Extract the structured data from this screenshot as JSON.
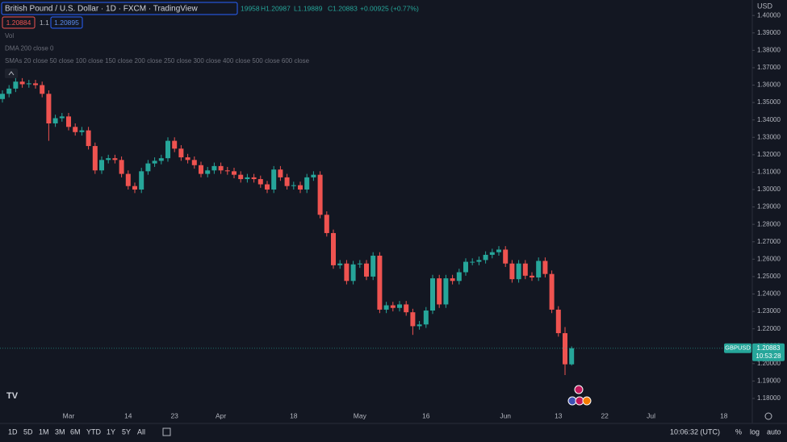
{
  "header": {
    "title": "British Pound / U.S. Dollar · 1D · FXCM · TradingView",
    "ohlc": [
      "19958",
      "H1.20987",
      "L1.19889",
      "C1.20883",
      "+0.00925 (+0.77%)"
    ],
    "bid": "1.20884",
    "spread": "1.1",
    "ask": "1.20895"
  },
  "indicators": [
    "Vol",
    "DMA 200 close 0",
    "SMAs 20 close 50 close 100 close 150 close 200 close 250 close 300 close 400 close 500 close 600 close"
  ],
  "toolbar": {
    "ranges": [
      "1D",
      "5D",
      "1M",
      "3M",
      "6M",
      "YTD",
      "1Y",
      "5Y",
      "All"
    ],
    "clock": "10:06:32 (UTC)",
    "options": [
      "%",
      "log",
      "auto"
    ]
  },
  "chart_data": {
    "type": "candlestick",
    "currency": "USD",
    "symbol": "GBPUSD",
    "last_price": 1.20883,
    "countdown": "10:53:28",
    "up_color": "#26a69a",
    "down_color": "#ef5350",
    "categories": [
      null,
      null,
      null,
      null,
      null,
      null,
      null,
      null,
      null,
      null,
      "Mar",
      null,
      null,
      null,
      null,
      null,
      null,
      null,
      null,
      "14",
      null,
      null,
      null,
      null,
      null,
      null,
      "23",
      null,
      null,
      null,
      null,
      null,
      null,
      "Apr",
      null,
      null,
      null,
      null,
      null,
      null,
      null,
      null,
      null,
      null,
      "18",
      null,
      null,
      null,
      null,
      null,
      null,
      null,
      null,
      null,
      "May",
      null,
      null,
      null,
      null,
      null,
      null,
      null,
      null,
      null,
      "16",
      null,
      null,
      null,
      null,
      null,
      null,
      null,
      null,
      null,
      null,
      null,
      "Jun",
      null,
      null,
      null,
      null,
      null,
      null,
      null,
      "13",
      null,
      null,
      null,
      null,
      null,
      null,
      "22",
      null,
      null,
      null,
      null,
      null,
      null,
      "Jul",
      null,
      null,
      null,
      null,
      null,
      null,
      null,
      null,
      null,
      null,
      "18",
      null,
      null
    ],
    "open": [
      1.352,
      1.355,
      1.358,
      1.362,
      1.3605,
      1.361,
      1.36,
      1.355,
      1.338,
      1.341,
      1.342,
      1.336,
      1.333,
      1.334,
      1.325,
      1.311,
      1.317,
      1.318,
      1.317,
      1.309,
      1.302,
      1.3,
      1.3105,
      1.315,
      1.3165,
      1.318,
      1.328,
      1.3235,
      1.3185,
      1.317,
      1.314,
      1.309,
      1.311,
      1.3135,
      1.311,
      1.3105,
      1.3085,
      1.306,
      1.307,
      1.306,
      1.303,
      1.3,
      1.3115,
      1.307,
      1.302,
      1.3025,
      1.3,
      1.307,
      1.3085,
      1.2855,
      1.275,
      1.2565,
      1.2575,
      1.2475,
      1.257,
      1.2575,
      1.25,
      1.262,
      1.231,
      1.2335,
      1.232,
      1.234,
      1.2295,
      1.2215,
      1.2225,
      1.2305,
      1.249,
      1.234,
      1.249,
      1.2475,
      1.2525,
      1.2585,
      1.2585,
      1.2595,
      1.2625,
      1.264,
      1.2655,
      1.2575,
      1.2485,
      1.2575,
      1.2505,
      1.2495,
      1.259,
      1.2515,
      1.231,
      1.2175,
      1.19958,
      null,
      null,
      null,
      null,
      null,
      null,
      null,
      null,
      null,
      null,
      null,
      null,
      null,
      null,
      null,
      null,
      null,
      null,
      null,
      null,
      null,
      null,
      null,
      null,
      null
    ],
    "high": [
      1.357,
      1.36,
      1.364,
      1.364,
      1.363,
      1.363,
      1.362,
      1.357,
      1.343,
      1.344,
      1.344,
      1.338,
      1.336,
      1.336,
      1.327,
      1.319,
      1.32,
      1.32,
      1.319,
      1.311,
      1.304,
      1.3125,
      1.317,
      1.3185,
      1.32,
      1.33,
      1.33,
      1.3255,
      1.3205,
      1.319,
      1.316,
      1.313,
      1.3155,
      1.3155,
      1.313,
      1.3125,
      1.3105,
      1.309,
      1.309,
      1.308,
      1.305,
      1.3135,
      1.3135,
      1.309,
      1.3045,
      1.3045,
      1.309,
      1.3105,
      1.3105,
      1.2875,
      1.277,
      1.2595,
      1.2595,
      1.259,
      1.2595,
      1.2595,
      1.264,
      1.264,
      1.2355,
      1.2355,
      1.236,
      1.236,
      1.2315,
      1.2245,
      1.2325,
      1.251,
      1.251,
      1.251,
      1.251,
      1.2545,
      1.2605,
      1.2605,
      1.2615,
      1.2645,
      1.266,
      1.2675,
      1.2675,
      1.2595,
      1.2595,
      1.2595,
      1.2525,
      1.261,
      1.261,
      1.2535,
      1.233,
      1.221,
      1.20987,
      null,
      null,
      null,
      null,
      null,
      null,
      null,
      null,
      null,
      null,
      null,
      null,
      null,
      null,
      null,
      null,
      null,
      null,
      null,
      null,
      null,
      null,
      null,
      null,
      null
    ],
    "low": [
      1.35,
      1.353,
      1.356,
      1.3585,
      1.3585,
      1.358,
      1.353,
      1.328,
      1.336,
      1.339,
      1.334,
      1.331,
      1.331,
      1.323,
      1.309,
      1.309,
      1.315,
      1.315,
      1.307,
      1.3,
      1.298,
      1.298,
      1.3085,
      1.313,
      1.3145,
      1.316,
      1.3215,
      1.3165,
      1.315,
      1.312,
      1.307,
      1.307,
      1.309,
      1.309,
      1.3085,
      1.3065,
      1.304,
      1.304,
      1.304,
      1.301,
      1.298,
      1.298,
      1.305,
      1.3,
      1.3,
      1.298,
      1.298,
      1.305,
      1.2835,
      1.273,
      1.2545,
      1.2545,
      1.2455,
      1.2455,
      1.255,
      1.248,
      1.248,
      1.229,
      1.229,
      1.23,
      1.23,
      1.2275,
      1.2165,
      1.2195,
      1.2205,
      1.2285,
      1.232,
      1.232,
      1.2455,
      1.2455,
      1.2505,
      1.2565,
      1.2565,
      1.2575,
      1.2605,
      1.262,
      1.2555,
      1.2465,
      1.2465,
      1.2485,
      1.2475,
      1.2475,
      1.2495,
      1.229,
      1.2155,
      1.1934,
      1.19889,
      null,
      null,
      null,
      null,
      null,
      null,
      null,
      null,
      null,
      null,
      null,
      null,
      null,
      null,
      null,
      null,
      null,
      null,
      null,
      null,
      null,
      null,
      null,
      null,
      null
    ],
    "close": [
      1.355,
      1.358,
      1.362,
      1.3605,
      1.361,
      1.36,
      1.355,
      1.338,
      1.341,
      1.342,
      1.336,
      1.333,
      1.334,
      1.325,
      1.311,
      1.317,
      1.318,
      1.317,
      1.309,
      1.302,
      1.3,
      1.3105,
      1.315,
      1.3165,
      1.318,
      1.328,
      1.3235,
      1.3185,
      1.317,
      1.314,
      1.309,
      1.311,
      1.3135,
      1.311,
      1.3105,
      1.3085,
      1.306,
      1.307,
      1.306,
      1.303,
      1.3,
      1.3115,
      1.307,
      1.302,
      1.3025,
      1.3,
      1.307,
      1.3085,
      1.2855,
      1.275,
      1.2565,
      1.2575,
      1.2475,
      1.257,
      1.2575,
      1.25,
      1.262,
      1.231,
      1.2335,
      1.232,
      1.234,
      1.2295,
      1.2215,
      1.2225,
      1.2305,
      1.249,
      1.234,
      1.249,
      1.2475,
      1.2525,
      1.2585,
      1.2585,
      1.2595,
      1.2625,
      1.264,
      1.2655,
      1.2575,
      1.2485,
      1.2575,
      1.2505,
      1.2495,
      1.259,
      1.2515,
      1.231,
      1.2175,
      1.1996,
      1.20883,
      null,
      null,
      null,
      null,
      null,
      null,
      null,
      null,
      null,
      null,
      null,
      null,
      null,
      null,
      null,
      null,
      null,
      null,
      null,
      null,
      null,
      null,
      null,
      null,
      null
    ],
    "ylim": [
      1.1735,
      1.4089
    ],
    "yticks": [
      {
        "value": 1.18,
        "label": "1.18000"
      },
      {
        "value": 1.19,
        "label": "1.19000"
      },
      {
        "value": 1.2,
        "label": "1.20000"
      },
      {
        "value": 1.21,
        "label": "1.21000"
      },
      {
        "value": 1.22,
        "label": "1.22000"
      },
      {
        "value": 1.23,
        "label": "1.23000"
      },
      {
        "value": 1.24,
        "label": "1.24000"
      },
      {
        "value": 1.25,
        "label": "1.25000"
      },
      {
        "value": 1.26,
        "label": "1.26000"
      },
      {
        "value": 1.27,
        "label": "1.27000"
      },
      {
        "value": 1.28,
        "label": "1.28000"
      },
      {
        "value": 1.29,
        "label": "1.29000"
      },
      {
        "value": 1.3,
        "label": "1.30000"
      },
      {
        "value": 1.31,
        "label": "1.31000"
      },
      {
        "value": 1.32,
        "label": "1.32000"
      },
      {
        "value": 1.33,
        "label": "1.33000"
      },
      {
        "value": 1.34,
        "label": "1.34000"
      },
      {
        "value": 1.35,
        "label": "1.35000"
      },
      {
        "value": 1.36,
        "label": "1.36000"
      },
      {
        "value": 1.37,
        "label": "1.37000"
      },
      {
        "value": 1.38,
        "label": "1.38000"
      },
      {
        "value": 1.39,
        "label": "1.39000"
      },
      {
        "value": 1.4,
        "label": "1.40000"
      }
    ]
  }
}
